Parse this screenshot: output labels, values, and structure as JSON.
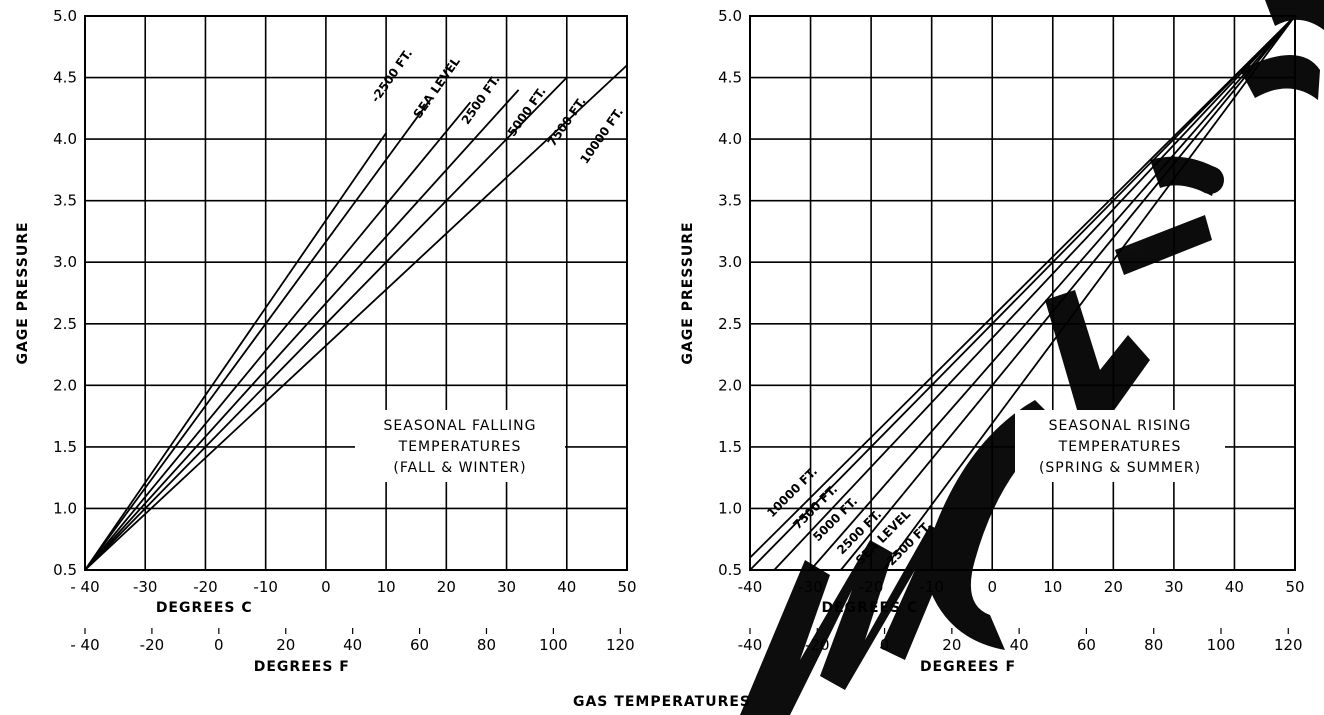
{
  "figure": {
    "common_xlabel": "GAS TEMPERATURES",
    "watermark": "ManualsLib.com"
  },
  "chart_data": [
    {
      "type": "line",
      "name": "falling",
      "note_lines": [
        "SEASONAL FALLING",
        "TEMPERATURES",
        "(FALL & WINTER)"
      ],
      "xlabel": "DEGREES C",
      "xlabel2": "DEGREES F",
      "ylabel": "GAGE PRESSURE",
      "xlim": [
        -40,
        50
      ],
      "ylim": [
        0.5,
        5.0
      ],
      "x_ticks": [
        "- 40",
        "-30",
        "-20",
        "-10",
        "0",
        "10",
        "20",
        "30",
        "40",
        "50"
      ],
      "x_tick_values": [
        -40,
        -30,
        -20,
        -10,
        0,
        10,
        20,
        30,
        40,
        50
      ],
      "f_ticks": [
        "- 40",
        "-20",
        "0",
        "20",
        "40",
        "60",
        "80",
        "100",
        "120"
      ],
      "f_tick_values": [
        -40,
        -20,
        0,
        20,
        40,
        60,
        80,
        100,
        120
      ],
      "y_ticks": [
        "0.5",
        "1.0",
        "1.5",
        "2.0",
        "2.5",
        "3.0",
        "3.5",
        "4.0",
        "4.5",
        "5.0"
      ],
      "y_tick_values": [
        0.5,
        1.0,
        1.5,
        2.0,
        2.5,
        3.0,
        3.5,
        4.0,
        4.5,
        5.0
      ],
      "grid": true,
      "series": [
        {
          "name": "-2500 FT.",
          "x": [
            -40,
            10
          ],
          "y": [
            0.5,
            4.05
          ]
        },
        {
          "name": "SEA LEVEL",
          "x": [
            -40,
            17
          ],
          "y": [
            0.5,
            4.3
          ]
        },
        {
          "name": "2500 FT.",
          "x": [
            -40,
            24
          ],
          "y": [
            0.5,
            4.3
          ]
        },
        {
          "name": "5000 FT.",
          "x": [
            -40,
            32
          ],
          "y": [
            0.5,
            4.4
          ]
        },
        {
          "name": "7500 FT.",
          "x": [
            -40,
            40
          ],
          "y": [
            0.5,
            4.5
          ]
        },
        {
          "name": "10000 FT.",
          "x": [
            -40,
            50
          ],
          "y": [
            0.5,
            4.6
          ]
        }
      ]
    },
    {
      "type": "line",
      "name": "rising",
      "note_lines": [
        "SEASONAL RISING",
        "TEMPERATURES",
        "(SPRING & SUMMER)"
      ],
      "xlabel": "DEGREES C",
      "xlabel2": "DEGREES F",
      "ylabel": "GAGE PRESSURE",
      "xlim": [
        -40,
        50
      ],
      "ylim": [
        0.5,
        5.0
      ],
      "x_ticks": [
        "-40",
        "-30",
        "-20",
        "-10",
        "0",
        "10",
        "20",
        "30",
        "40",
        "50"
      ],
      "x_tick_values": [
        -40,
        -30,
        -20,
        -10,
        0,
        10,
        20,
        30,
        40,
        50
      ],
      "f_ticks": [
        "-40",
        "-20",
        "0",
        "20",
        "40",
        "60",
        "80",
        "100",
        "120"
      ],
      "f_tick_values": [
        -40,
        -20,
        0,
        20,
        40,
        60,
        80,
        100,
        120
      ],
      "y_ticks": [
        "0.5",
        "1.0",
        "1.5",
        "2.0",
        "2.5",
        "3.0",
        "3.5",
        "4.0",
        "4.5",
        "5.0"
      ],
      "y_tick_values": [
        0.5,
        1.0,
        1.5,
        2.0,
        2.5,
        3.0,
        3.5,
        4.0,
        4.5,
        5.0
      ],
      "grid": true,
      "series": [
        {
          "name": "10000 FT.",
          "x": [
            -40,
            50
          ],
          "y": [
            0.6,
            5.0
          ]
        },
        {
          "name": "7500 FT.",
          "x": [
            -40,
            50
          ],
          "y": [
            0.5,
            5.0
          ]
        },
        {
          "name": "5000 FT.",
          "x": [
            -36,
            50
          ],
          "y": [
            0.5,
            5.0
          ]
        },
        {
          "name": "2500 FT.",
          "x": [
            -30,
            50
          ],
          "y": [
            0.5,
            5.0
          ]
        },
        {
          "name": "SEA LEVEL",
          "x": [
            -25,
            50
          ],
          "y": [
            0.5,
            5.0
          ]
        },
        {
          "name": "-2500 FT.",
          "x": [
            -18,
            50
          ],
          "y": [
            0.5,
            5.0
          ]
        }
      ]
    }
  ]
}
